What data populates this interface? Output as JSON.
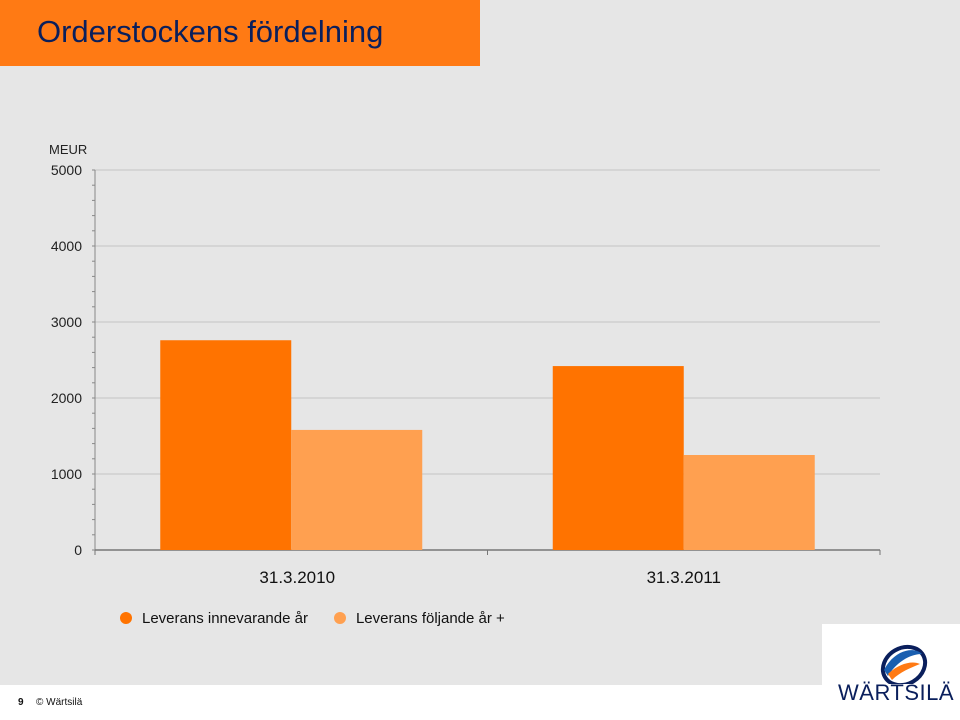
{
  "slide": {
    "title": "Orderstockens fördelning",
    "page_number": "9",
    "copyright": "© Wärtsilä",
    "logo_text": "WÄRTSILÄ"
  },
  "colors": {
    "title_bar": "#ff7a14",
    "title_text": "#0a1f5c",
    "series_1": "#ff7300",
    "series_2": "#ffa050",
    "background": "#e6e6e6"
  },
  "chart_data": {
    "type": "bar",
    "unit_label": "MEUR",
    "categories": [
      "31.3.2010",
      "31.3.2011"
    ],
    "series": [
      {
        "name": "Leverans innevarande år",
        "values": [
          2760,
          2420
        ]
      },
      {
        "name": "Leverans följande år +",
        "values": [
          1580,
          1250
        ]
      }
    ],
    "ylim": [
      0,
      5000
    ],
    "yticks": [
      "0",
      "1000",
      "2000",
      "3000",
      "4000",
      "5000"
    ],
    "grid": true,
    "legend_position": "bottom"
  }
}
